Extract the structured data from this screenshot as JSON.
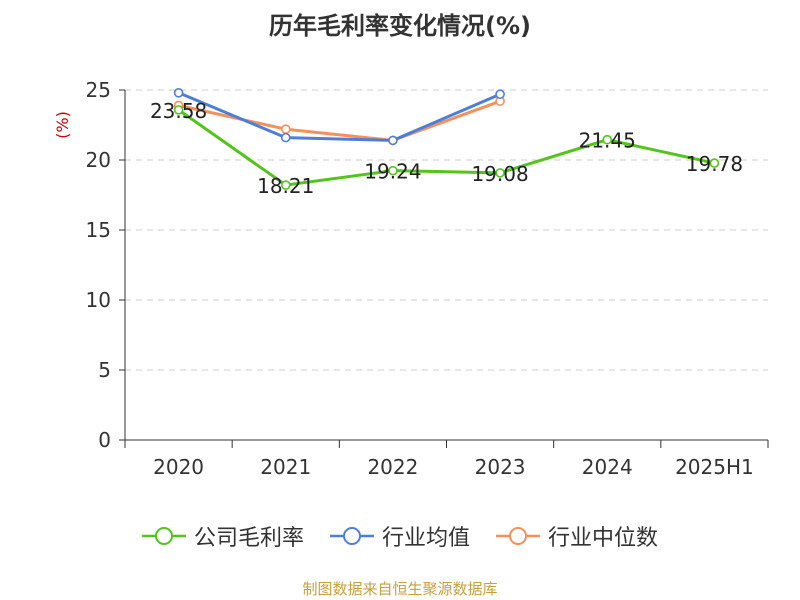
{
  "chart_data": {
    "type": "line",
    "title": "历年毛利率变化情况(%)",
    "ylabel": "(%)",
    "xlabel": "",
    "categories": [
      "2020",
      "2021",
      "2022",
      "2023",
      "2024",
      "2025H1"
    ],
    "ylim": [
      0,
      25
    ],
    "yticks": [
      0,
      5,
      10,
      15,
      20,
      25
    ],
    "grid": true,
    "legend_position": "bottom",
    "series": [
      {
        "name": "公司毛利率",
        "color": "#52c41a",
        "values": [
          23.58,
          18.21,
          19.24,
          19.08,
          21.45,
          19.78
        ],
        "labels": [
          "23.58",
          "18.21",
          "19.24",
          "19.08",
          "21.45",
          "19.78"
        ]
      },
      {
        "name": "行业均值",
        "color": "#4e7fd8",
        "values": [
          24.8,
          21.6,
          21.4,
          24.7,
          null,
          null
        ]
      },
      {
        "name": "行业中位数",
        "color": "#f5905a",
        "values": [
          23.9,
          22.2,
          21.4,
          24.2,
          null,
          null
        ]
      }
    ]
  },
  "source_note": "制图数据来自恒生聚源数据库",
  "axis_label_color": "#cc0000"
}
